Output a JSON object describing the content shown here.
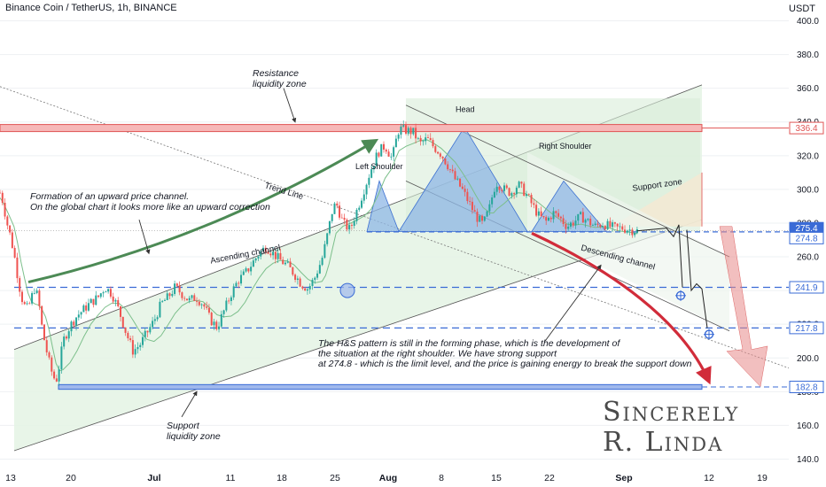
{
  "header": {
    "title": "Binance Coin / TetherUS, 1h, BINANCE",
    "currency": "USDT"
  },
  "signature": {
    "line1": "Sincerely",
    "line2": "R. Linda"
  },
  "colors": {
    "price_line": "#e05555",
    "resistance_zone": "#f6b8b8",
    "resistance_line": "#e05555",
    "support_line": "#3a6bd6",
    "support_zone": "#9fb8ec",
    "channel_fill": "#e4f3e4",
    "pattern_fill": "#8fb7e6",
    "green_arrow": "#4c8a55",
    "red_arrow": "#d12c3a",
    "candle_up": "#26a69a",
    "candle_down": "#ef5350",
    "ma_line": "#7cbf8b"
  },
  "chart_data": {
    "type": "candlestick",
    "symbol": "Binance Coin / TetherUS",
    "interval": "1h",
    "exchange": "BINANCE",
    "y_axis": {
      "unit": "USDT",
      "ticks": [
        140.0,
        160.0,
        180.0,
        200.0,
        220.0,
        240.0,
        260.0,
        280.0,
        300.0,
        320.0,
        340.0,
        360.0,
        380.0,
        400.0
      ],
      "range": [
        135,
        405
      ]
    },
    "x_axis": {
      "ticks": [
        "13",
        "20",
        "Jul",
        "11",
        "18",
        "25",
        "Aug",
        "8",
        "15",
        "22",
        "Sep",
        "12",
        "19"
      ],
      "bold_ticks": [
        "Jul",
        "Aug",
        "Sep"
      ]
    },
    "price_labels": [
      {
        "value": 336.4,
        "text": "336.4",
        "style": "resistance"
      },
      {
        "value": 275.4,
        "text": "275.4",
        "style": "current"
      },
      {
        "value": 274.8,
        "text": "274.8",
        "style": "support"
      },
      {
        "value": 241.9,
        "text": "241.9",
        "style": "support"
      },
      {
        "value": 217.8,
        "text": "217.8",
        "style": "support"
      },
      {
        "value": 182.8,
        "text": "182.8",
        "style": "support"
      }
    ],
    "horizontal_levels": [
      {
        "value": 336.4,
        "kind": "resistance-zone"
      },
      {
        "value": 274.8,
        "kind": "neckline"
      },
      {
        "value": 241.9,
        "kind": "dashed"
      },
      {
        "value": 217.8,
        "kind": "dashed"
      },
      {
        "value": 182.8,
        "kind": "support-zone"
      }
    ],
    "price_path": [
      [
        0,
        298
      ],
      [
        0.004,
        293
      ],
      [
        0.01,
        280
      ],
      [
        0.015,
        272
      ],
      [
        0.02,
        262
      ],
      [
        0.025,
        249
      ],
      [
        0.03,
        237
      ],
      [
        0.035,
        231
      ],
      [
        0.04,
        229
      ],
      [
        0.045,
        236
      ],
      [
        0.05,
        242
      ],
      [
        0.055,
        234
      ],
      [
        0.06,
        218
      ],
      [
        0.065,
        207
      ],
      [
        0.07,
        198
      ],
      [
        0.075,
        190
      ],
      [
        0.08,
        186
      ],
      [
        0.085,
        196
      ],
      [
        0.09,
        210
      ],
      [
        0.1,
        219
      ],
      [
        0.11,
        225
      ],
      [
        0.12,
        229
      ],
      [
        0.13,
        233
      ],
      [
        0.14,
        236
      ],
      [
        0.15,
        242
      ],
      [
        0.16,
        238
      ],
      [
        0.17,
        228
      ],
      [
        0.18,
        215
      ],
      [
        0.19,
        204
      ],
      [
        0.2,
        208
      ],
      [
        0.21,
        215
      ],
      [
        0.22,
        222
      ],
      [
        0.23,
        232
      ],
      [
        0.24,
        236
      ],
      [
        0.25,
        242
      ],
      [
        0.26,
        238
      ],
      [
        0.27,
        234
      ],
      [
        0.28,
        236
      ],
      [
        0.29,
        232
      ],
      [
        0.3,
        223
      ],
      [
        0.31,
        218
      ],
      [
        0.32,
        228
      ],
      [
        0.33,
        238
      ],
      [
        0.34,
        246
      ],
      [
        0.35,
        250
      ],
      [
        0.36,
        256
      ],
      [
        0.37,
        262
      ],
      [
        0.38,
        266
      ],
      [
        0.39,
        262
      ],
      [
        0.4,
        258
      ],
      [
        0.41,
        255
      ],
      [
        0.42,
        250
      ],
      [
        0.43,
        244
      ],
      [
        0.44,
        241
      ],
      [
        0.45,
        248
      ],
      [
        0.46,
        259
      ],
      [
        0.465,
        268
      ],
      [
        0.47,
        278
      ],
      [
        0.475,
        288
      ],
      [
        0.48,
        292
      ],
      [
        0.49,
        280
      ],
      [
        0.5,
        276
      ],
      [
        0.51,
        288
      ],
      [
        0.52,
        300
      ],
      [
        0.53,
        312
      ],
      [
        0.54,
        322
      ],
      [
        0.55,
        326
      ],
      [
        0.56,
        318
      ],
      [
        0.565,
        328
      ],
      [
        0.57,
        336
      ],
      [
        0.58,
        335
      ],
      [
        0.59,
        334
      ],
      [
        0.6,
        327
      ],
      [
        0.61,
        330
      ],
      [
        0.62,
        325
      ],
      [
        0.63,
        321
      ],
      [
        0.64,
        314
      ],
      [
        0.65,
        306
      ],
      [
        0.66,
        300
      ],
      [
        0.67,
        292
      ],
      [
        0.68,
        284
      ],
      [
        0.69,
        279
      ],
      [
        0.7,
        290
      ],
      [
        0.705,
        300
      ],
      [
        0.71,
        304
      ],
      [
        0.72,
        300
      ],
      [
        0.73,
        298
      ],
      [
        0.74,
        303
      ],
      [
        0.75,
        298
      ],
      [
        0.76,
        291
      ],
      [
        0.77,
        284
      ],
      [
        0.78,
        281
      ],
      [
        0.79,
        286
      ],
      [
        0.8,
        283
      ],
      [
        0.81,
        278
      ],
      [
        0.82,
        281
      ],
      [
        0.83,
        284
      ],
      [
        0.84,
        281
      ],
      [
        0.85,
        278
      ],
      [
        0.86,
        280
      ],
      [
        0.87,
        278
      ],
      [
        0.88,
        277
      ],
      [
        0.89,
        277
      ],
      [
        0.9,
        276
      ],
      [
        0.91,
        275.4
      ]
    ],
    "annotations": [
      {
        "id": "resistance",
        "text": "Resistance liquidity zone",
        "lines": [
          "Resistance",
          "liquidity zone"
        ]
      },
      {
        "id": "formation",
        "lines": [
          "Formation of an upward price channel.",
          "On the global chart it looks more like an upward correction"
        ]
      },
      {
        "id": "trend-line",
        "lines": [
          "Trend Line"
        ]
      },
      {
        "id": "ascending-channel",
        "lines": [
          "Ascending channel"
        ]
      },
      {
        "id": "left-shoulder",
        "lines": [
          "Left Shoulder"
        ]
      },
      {
        "id": "head",
        "lines": [
          "Head"
        ]
      },
      {
        "id": "right-shoulder",
        "lines": [
          "Right Shoulder"
        ]
      },
      {
        "id": "support-zone",
        "lines": [
          "Support zone"
        ]
      },
      {
        "id": "descending-channel",
        "lines": [
          "Descending channel"
        ]
      },
      {
        "id": "hs-note",
        "lines": [
          "The H&S pattern is still in the forming phase, which is the development of",
          "the situation at the right shoulder. We have strong support",
          "at 274.8 - which is the limit level, and the price is gaining energy to break the support down"
        ]
      },
      {
        "id": "support-liquidity",
        "lines": [
          "Support",
          "liquidity zone"
        ]
      }
    ]
  }
}
